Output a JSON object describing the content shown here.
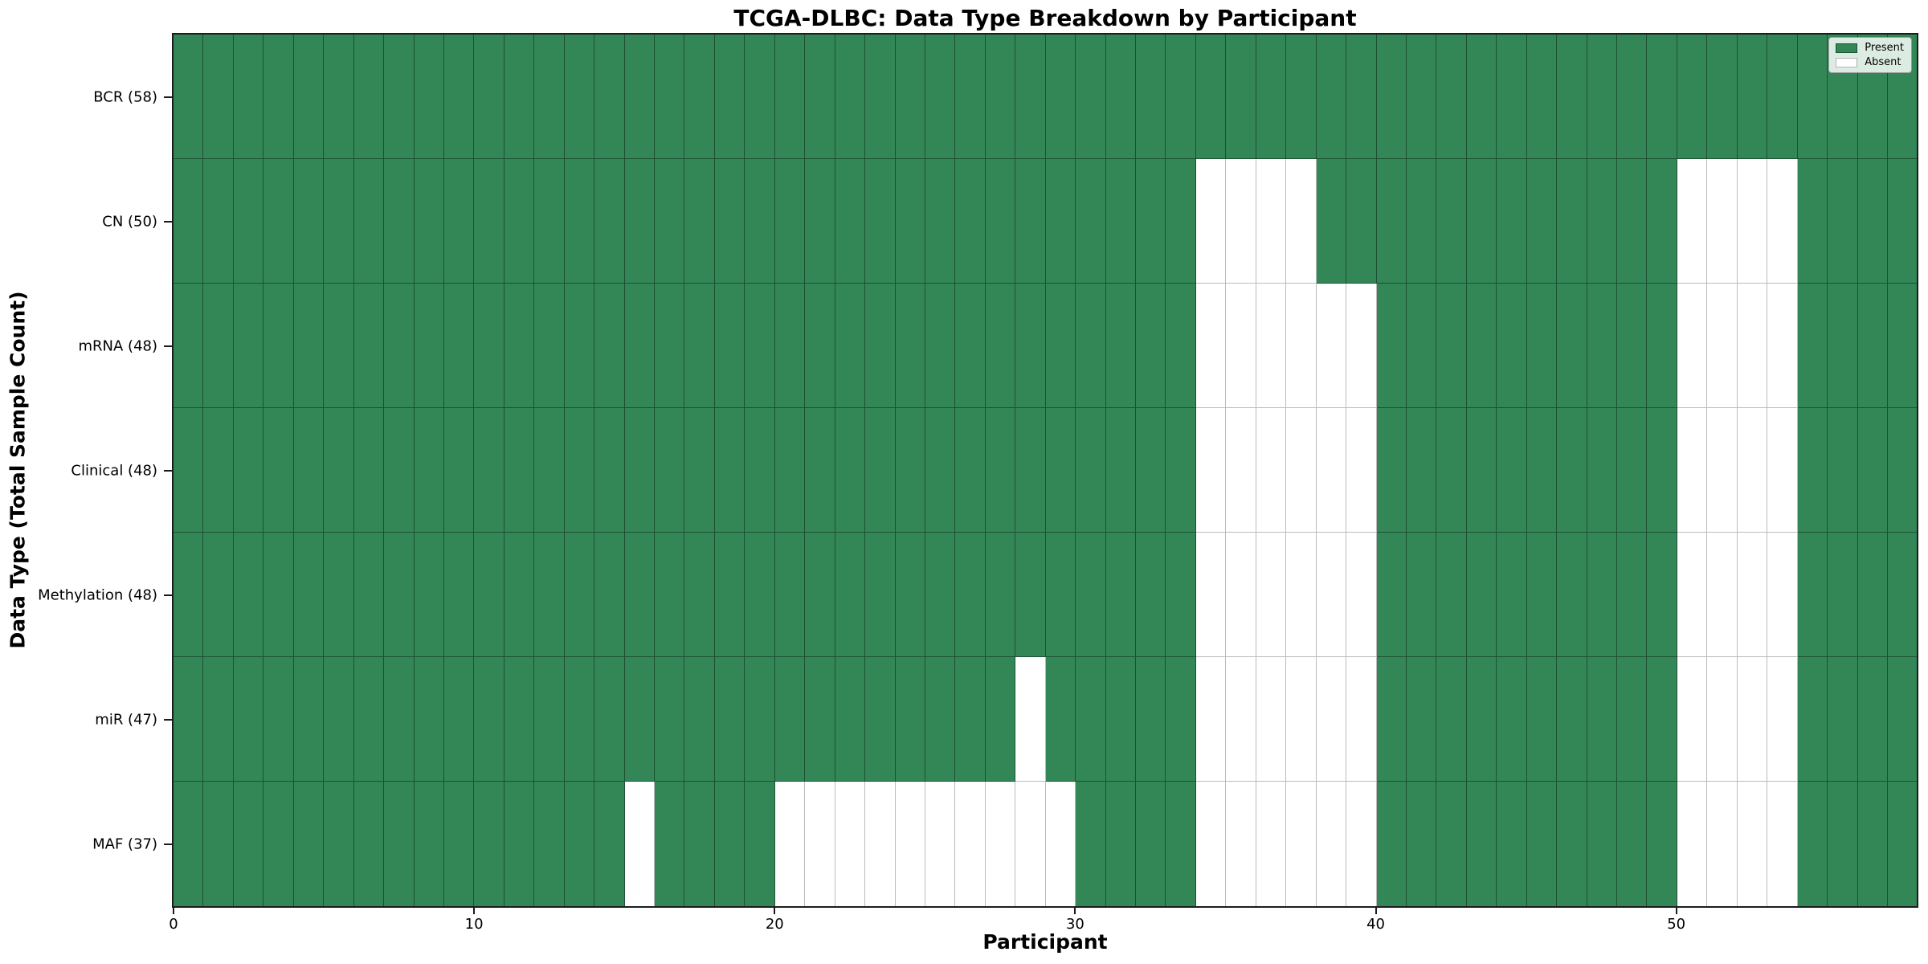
{
  "chart_data": {
    "type": "heatmap",
    "title": "TCGA-DLBC: Data Type Breakdown by Participant",
    "xlabel": "Participant",
    "ylabel": "Data Type (Total Sample Count)",
    "n_participants": 58,
    "x_ticks": [
      0,
      10,
      20,
      30,
      40,
      50
    ],
    "grid": "cell-edges",
    "legend_position": "upper-right",
    "colors": {
      "present": "#338757",
      "absent": "#ffffff"
    },
    "legend": [
      {
        "label": "Present",
        "state": "present",
        "color": "#338757"
      },
      {
        "label": "Absent",
        "state": "absent",
        "color": "#ffffff"
      }
    ],
    "rows": [
      {
        "label": "BCR (58)",
        "total_present": 58,
        "absent": []
      },
      {
        "label": "CN (50)",
        "total_present": 50,
        "absent": [
          34,
          35,
          36,
          37,
          50,
          51,
          52,
          53
        ]
      },
      {
        "label": "mRNA (48)",
        "total_present": 48,
        "absent": [
          34,
          35,
          36,
          37,
          38,
          39,
          50,
          51,
          52,
          53
        ]
      },
      {
        "label": "Clinical (48)",
        "total_present": 48,
        "absent": [
          34,
          35,
          36,
          37,
          38,
          39,
          50,
          51,
          52,
          53
        ]
      },
      {
        "label": "Methylation (48)",
        "total_present": 48,
        "absent": [
          34,
          35,
          36,
          37,
          38,
          39,
          50,
          51,
          52,
          53
        ]
      },
      {
        "label": "miR (47)",
        "total_present": 47,
        "absent": [
          28,
          34,
          35,
          36,
          37,
          38,
          39,
          50,
          51,
          52,
          53
        ]
      },
      {
        "label": "MAF (37)",
        "total_present": 37,
        "absent": [
          15,
          20,
          21,
          22,
          23,
          24,
          25,
          26,
          27,
          28,
          29,
          34,
          35,
          36,
          37,
          38,
          39,
          50,
          51,
          52,
          53
        ]
      }
    ]
  }
}
